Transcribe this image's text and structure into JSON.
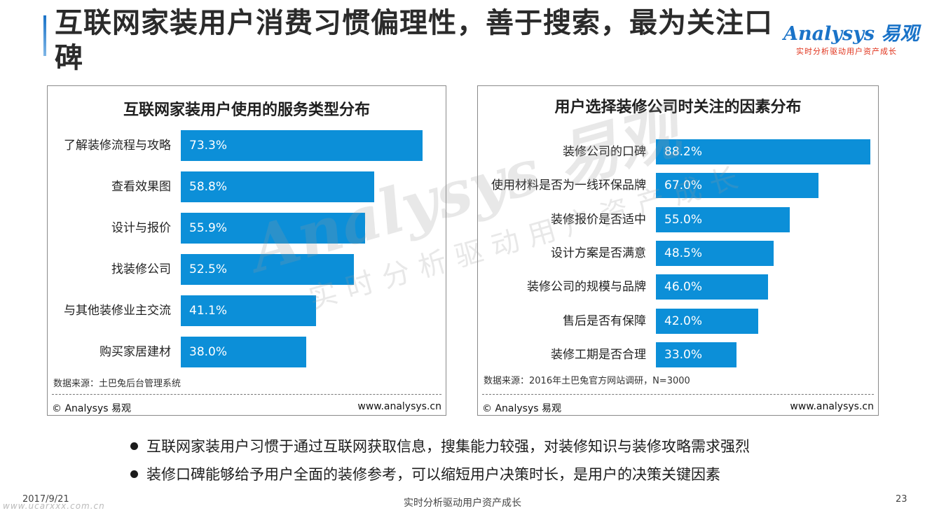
{
  "page": {
    "title": "互联网家装用户消费习惯偏理性，善于搜索，最为关注口碑",
    "logo_main": "Analysys 易观",
    "logo_tag": "实时分析驱动用户资产成长",
    "watermark_main": "Analysys 易观",
    "watermark_tag": "实时分析驱动用户资产成长",
    "url_watermark": "www.ucarxxx.com.cn",
    "bullets": [
      "互联网家装用户习惯于通过互联网获取信息，搜集能力较强，对装修知识与装修攻略需求强烈",
      "装修口碑能够给予用户全面的装修参考，可以缩短用户决策时长，是用户的决策关键因素"
    ],
    "footer": {
      "date": "2017/9/21",
      "center": "实时分析驱动用户资产成长",
      "page_number": "23"
    },
    "colors": {
      "bar": "#0c8fd8",
      "accent": "#1a73c8",
      "logo_tag": "#e0321b"
    }
  },
  "chart_data": [
    {
      "type": "bar",
      "orientation": "horizontal",
      "title": "互联网家装用户使用的服务类型分布",
      "categories": [
        "了解装修流程与攻略",
        "查看效果图",
        "设计与报价",
        "找装修公司",
        "与其他装修业主交流",
        "购买家居建材"
      ],
      "values": [
        73.3,
        58.8,
        55.9,
        52.5,
        41.1,
        38.0
      ],
      "value_labels": [
        "73.3%",
        "58.8%",
        "55.9%",
        "52.5%",
        "41.1%",
        "38.0%"
      ],
      "unit": "%",
      "source": "数据来源：土巴兔后台管理系统",
      "copyright": "© Analysys 易观",
      "website": "www.analysys.cn"
    },
    {
      "type": "bar",
      "orientation": "horizontal",
      "title": "用户选择装修公司时关注的因素分布",
      "categories": [
        "装修公司的口碑",
        "使用材料是否为一线环保品牌",
        "装修报价是否适中",
        "设计方案是否满意",
        "装修公司的规模与品牌",
        "售后是否有保障",
        "装修工期是否合理"
      ],
      "values": [
        88.2,
        67.0,
        55.0,
        48.5,
        46.0,
        42.0,
        33.0
      ],
      "value_labels": [
        "88.2%",
        "67.0%",
        "55.0%",
        "48.5%",
        "46.0%",
        "42.0%",
        "33.0%"
      ],
      "unit": "%",
      "source": "数据来源：2016年土巴兔官方网站调研，N=3000",
      "copyright": "© Analysys 易观",
      "website": "www.analysys.cn"
    }
  ]
}
